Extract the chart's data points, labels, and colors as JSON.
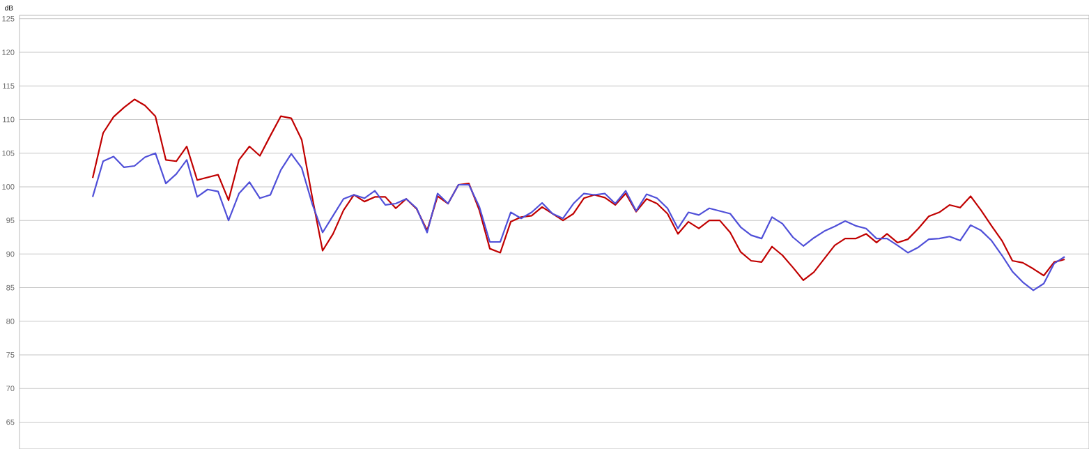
{
  "chart_data": {
    "type": "line",
    "ylabel": "dB",
    "categories": [
      null,
      null,
      null,
      null,
      null,
      null,
      null,
      null,
      null,
      null,
      null,
      null,
      null,
      null,
      null,
      null,
      null,
      null,
      null,
      null,
      null,
      null,
      null,
      null,
      null,
      null,
      null,
      null,
      null,
      null,
      null,
      null,
      null,
      null,
      null,
      null,
      null,
      null,
      null,
      null,
      null,
      null,
      null,
      null,
      null,
      null,
      null,
      null,
      null,
      null,
      null,
      null,
      null,
      null,
      null,
      null,
      null,
      null,
      null,
      null,
      null,
      null,
      null,
      null,
      null,
      null,
      null,
      null,
      null,
      null,
      null,
      null,
      null,
      null,
      null,
      null,
      null,
      null,
      null,
      null,
      null,
      null,
      null,
      null,
      null,
      null,
      null,
      null,
      null,
      null,
      null,
      null,
      null,
      null
    ],
    "series": [
      {
        "color": "#c00000",
        "values": [
          101.3,
          108.0,
          110.4,
          111.8,
          113.0,
          112.1,
          110.5,
          104.0,
          103.8,
          106.0,
          101.0,
          101.4,
          101.8,
          98.0,
          104.0,
          106.0,
          104.6,
          107.6,
          110.5,
          110.2,
          107.0,
          98.5,
          90.5,
          93.0,
          96.5,
          98.8,
          97.8,
          98.5,
          98.5,
          96.8,
          98.2,
          96.7,
          93.5,
          98.6,
          97.5,
          100.3,
          100.5,
          96.5,
          90.8,
          90.2,
          94.8,
          95.5,
          95.7,
          97.0,
          96.0,
          95.0,
          96.0,
          98.3,
          98.8,
          98.4,
          97.3,
          99.0,
          96.3,
          98.2,
          97.5,
          96.0,
          93.0,
          94.8,
          93.8,
          95.0,
          95.0,
          93.2,
          90.3,
          89.0,
          88.8,
          91.1,
          89.8,
          88.0,
          86.1,
          87.3,
          89.3,
          91.3,
          92.3,
          92.3,
          93.0,
          91.7,
          93.0,
          91.7,
          92.2,
          93.8,
          95.6,
          96.2,
          97.3,
          96.9,
          98.6,
          96.5,
          94.2,
          92.0,
          89.0,
          88.7,
          87.8,
          86.8,
          88.8,
          89.2
        ]
      },
      {
        "color": "#4f4fd8",
        "values": [
          98.5,
          103.8,
          104.5,
          102.9,
          103.1,
          104.4,
          105.0,
          100.5,
          101.9,
          104.0,
          98.5,
          99.6,
          99.3,
          95.0,
          99.0,
          100.7,
          98.3,
          98.8,
          102.5,
          104.9,
          102.8,
          97.5,
          93.2,
          95.7,
          98.2,
          98.8,
          98.3,
          99.4,
          97.3,
          97.5,
          98.2,
          96.8,
          93.2,
          99.0,
          97.5,
          100.3,
          100.3,
          97.0,
          91.8,
          91.8,
          96.2,
          95.3,
          96.2,
          97.6,
          96.0,
          95.3,
          97.5,
          99.0,
          98.8,
          99.0,
          97.5,
          99.4,
          96.4,
          98.9,
          98.3,
          96.8,
          93.8,
          96.2,
          95.8,
          96.8,
          96.4,
          96.0,
          94.0,
          92.8,
          92.3,
          95.5,
          94.5,
          92.5,
          91.2,
          92.4,
          93.4,
          94.1,
          94.9,
          94.2,
          93.8,
          92.3,
          92.3,
          91.3,
          90.2,
          91.0,
          92.2,
          92.3,
          92.6,
          92.0,
          94.3,
          93.5,
          92.0,
          89.8,
          87.4,
          85.8,
          84.6,
          85.6,
          88.6,
          89.6
        ]
      }
    ],
    "ylim": [
      61,
      125.5
    ],
    "yticks": [
      65,
      70,
      75,
      80,
      85,
      90,
      95,
      100,
      105,
      110,
      115,
      120,
      125
    ],
    "grid": "y",
    "tick_labels": "y",
    "marker": "none",
    "line_style": "solid"
  }
}
